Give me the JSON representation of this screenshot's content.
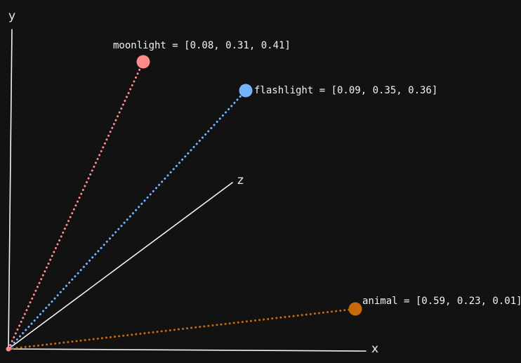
{
  "axes": {
    "x_label": "x",
    "y_label": "y",
    "z_label": "z",
    "color": "#f2f2f2"
  },
  "vectors": [
    {
      "id": "moonlight",
      "label": "moonlight = [0.08, 0.31, 0.41]",
      "color": "#ff8a8a"
    },
    {
      "id": "flashlight",
      "label": "flashlight = [0.09, 0.35, 0.36]",
      "color": "#74b3ff"
    },
    {
      "id": "animal",
      "label": "animal = [0.59, 0.23, 0.01]",
      "color": "#c86a0a"
    }
  ]
}
